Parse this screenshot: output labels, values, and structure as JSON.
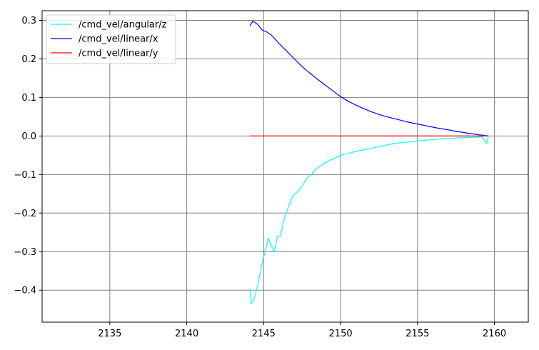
{
  "chart_data": {
    "type": "line",
    "title": "",
    "xlabel": "",
    "ylabel": "",
    "xlim": [
      2130.6,
      2162.2
    ],
    "ylim": [
      -0.483,
      0.325
    ],
    "x_ticks": [
      2135,
      2140,
      2145,
      2150,
      2155,
      2160
    ],
    "x_tick_labels": [
      "2135",
      "2140",
      "2145",
      "2150",
      "2155",
      "2160"
    ],
    "y_ticks": [
      0.3,
      0.2,
      0.1,
      0.0,
      -0.1,
      -0.2,
      -0.3,
      -0.4
    ],
    "y_tick_labels": [
      "0.3",
      "0.2",
      "0.1",
      "0.0",
      "−0.1",
      "−0.2",
      "−0.3",
      "−0.4"
    ],
    "grid": true,
    "legend_position": "top-left",
    "series": [
      {
        "name": "/cmd_vel/angular/z",
        "color": "#00ffff",
        "x": [
          2144.1,
          2144.2,
          2144.4,
          2144.6,
          2144.9,
          2145.1,
          2145.3,
          2145.5,
          2145.7,
          2145.9,
          2146.1,
          2146.3,
          2146.6,
          2146.9,
          2147.2,
          2147.5,
          2147.8,
          2148.1,
          2148.4,
          2148.8,
          2149.2,
          2149.6,
          2150.0,
          2150.5,
          2151.0,
          2151.6,
          2152.2,
          2152.8,
          2153.4,
          2154.0,
          2154.6,
          2155.2,
          2155.8,
          2156.4,
          2157.0,
          2157.6,
          2158.2,
          2158.8,
          2159.2,
          2159.5,
          2159.6
        ],
        "y": [
          -0.395,
          -0.435,
          -0.42,
          -0.39,
          -0.33,
          -0.3,
          -0.265,
          -0.285,
          -0.3,
          -0.26,
          -0.26,
          -0.22,
          -0.185,
          -0.155,
          -0.145,
          -0.13,
          -0.11,
          -0.1,
          -0.085,
          -0.075,
          -0.065,
          -0.058,
          -0.05,
          -0.045,
          -0.04,
          -0.035,
          -0.03,
          -0.025,
          -0.02,
          -0.017,
          -0.015,
          -0.012,
          -0.01,
          -0.008,
          -0.007,
          -0.005,
          -0.004,
          -0.003,
          -0.002,
          -0.02,
          0.0
        ]
      },
      {
        "name": "/cmd_vel/linear/x",
        "color": "#0000ff",
        "x": [
          2144.1,
          2144.3,
          2144.6,
          2144.9,
          2145.2,
          2145.5,
          2146.0,
          2146.5,
          2147.0,
          2147.5,
          2148.0,
          2148.5,
          2149.0,
          2149.5,
          2150.0,
          2150.5,
          2151.0,
          2151.5,
          2152.0,
          2152.5,
          2153.0,
          2153.5,
          2154.0,
          2154.5,
          2155.0,
          2155.5,
          2156.0,
          2156.5,
          2157.0,
          2157.5,
          2158.0,
          2158.5,
          2159.0,
          2159.3,
          2159.6
        ],
        "y": [
          0.285,
          0.298,
          0.29,
          0.275,
          0.27,
          0.262,
          0.24,
          0.22,
          0.2,
          0.18,
          0.163,
          0.147,
          0.132,
          0.117,
          0.102,
          0.09,
          0.08,
          0.071,
          0.063,
          0.056,
          0.05,
          0.045,
          0.04,
          0.035,
          0.031,
          0.027,
          0.023,
          0.019,
          0.016,
          0.012,
          0.009,
          0.006,
          0.003,
          0.002,
          0.0
        ]
      },
      {
        "name": "/cmd_vel/linear/y",
        "color": "#ff0000",
        "x": [
          2144.1,
          2159.6
        ],
        "y": [
          0.0,
          0.0
        ]
      }
    ]
  }
}
